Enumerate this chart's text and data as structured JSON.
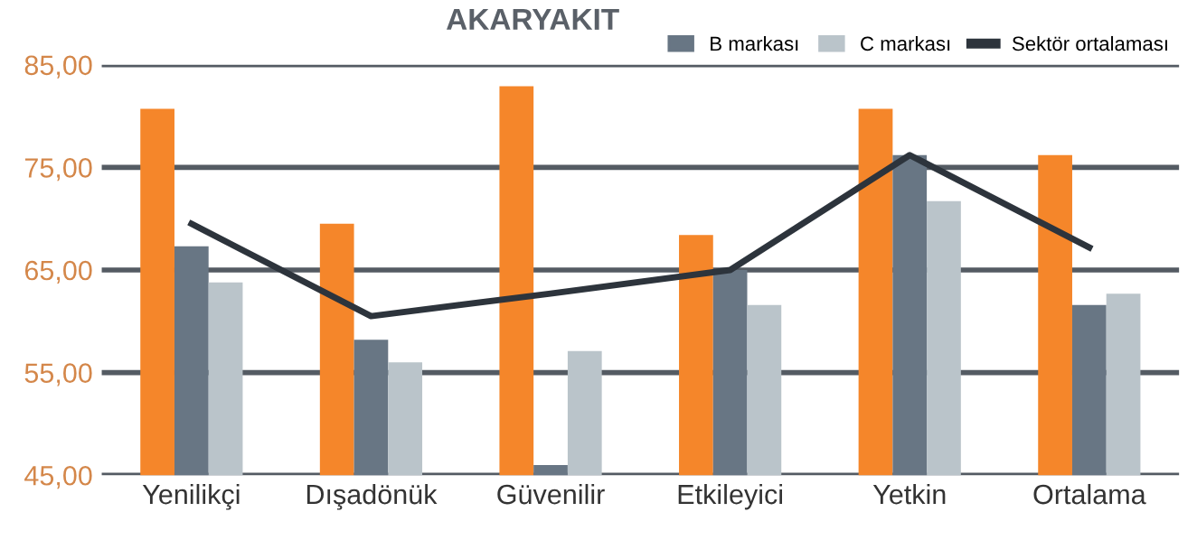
{
  "chart_data": {
    "type": "bar",
    "title": "AKARYAKIT",
    "categories": [
      "Yenilikçi",
      "Dışadönük",
      "Güvenilir",
      "Etkileyici",
      "Yetkin",
      "Ortalama"
    ],
    "series": [
      {
        "color": "#f5862a",
        "values": [
          80.7,
          69.5,
          82.9,
          68.4,
          80.7,
          76.2
        ]
      },
      {
        "name": "B markası",
        "color": "#687684",
        "values": [
          67.3,
          58.2,
          46.0,
          65.0,
          76.2,
          61.6
        ]
      },
      {
        "name": "C markası",
        "color": "#bac4ca",
        "values": [
          63.8,
          56.0,
          57.1,
          61.6,
          71.7,
          62.7
        ]
      },
      {
        "name": "Sektör ortalaması",
        "type": "line",
        "color": "#2d343c",
        "values": [
          69.5,
          60.5,
          62.7,
          65.0,
          76.2,
          67.2
        ]
      }
    ],
    "ylim": [
      45,
      85
    ],
    "yticks": [
      {
        "value": 45,
        "label": "45,00"
      },
      {
        "value": 55,
        "label": "55,00"
      },
      {
        "value": 65,
        "label": "65,00"
      },
      {
        "value": 75,
        "label": "75,00"
      },
      {
        "value": 85,
        "label": "85,00"
      }
    ],
    "grid": "y",
    "legend": "top right"
  }
}
